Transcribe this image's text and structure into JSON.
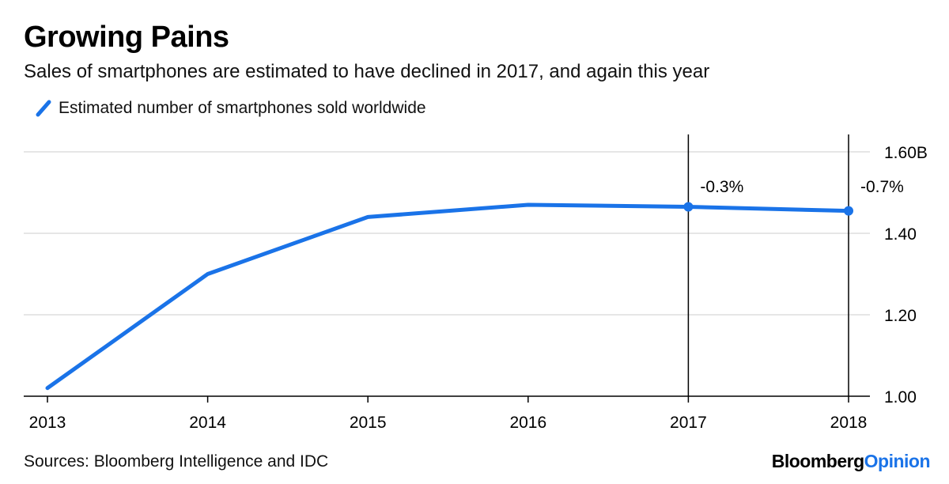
{
  "chart_data": {
    "type": "line",
    "title": "Growing Pains",
    "subtitle": "Sales of smartphones are estimated to have declined in 2017, and again this year",
    "legend": "Estimated number of smartphones sold worldwide",
    "x": [
      "2013",
      "2014",
      "2015",
      "2016",
      "2017",
      "2018"
    ],
    "series": [
      {
        "name": "Estimated number of smartphones sold worldwide",
        "values": [
          1.02,
          1.3,
          1.44,
          1.47,
          1.465,
          1.455
        ]
      }
    ],
    "ylim": [
      1.0,
      1.6
    ],
    "yticks": [
      {
        "value": 1.0,
        "label": "1.00"
      },
      {
        "value": 1.2,
        "label": "1.20"
      },
      {
        "value": 1.4,
        "label": "1.40"
      },
      {
        "value": 1.6,
        "label": "1.60B"
      }
    ],
    "annotations": [
      {
        "x": "2017",
        "label": "-0.3%"
      },
      {
        "x": "2018",
        "label": "-0.7%"
      }
    ],
    "source": "Sources: Bloomberg Intelligence and IDC",
    "colors": {
      "line": "#1a73e8",
      "grid": "#e6e6e6",
      "axis": "#000000"
    }
  },
  "brand": {
    "part1": "Bloomberg",
    "part2": "Opinion"
  }
}
